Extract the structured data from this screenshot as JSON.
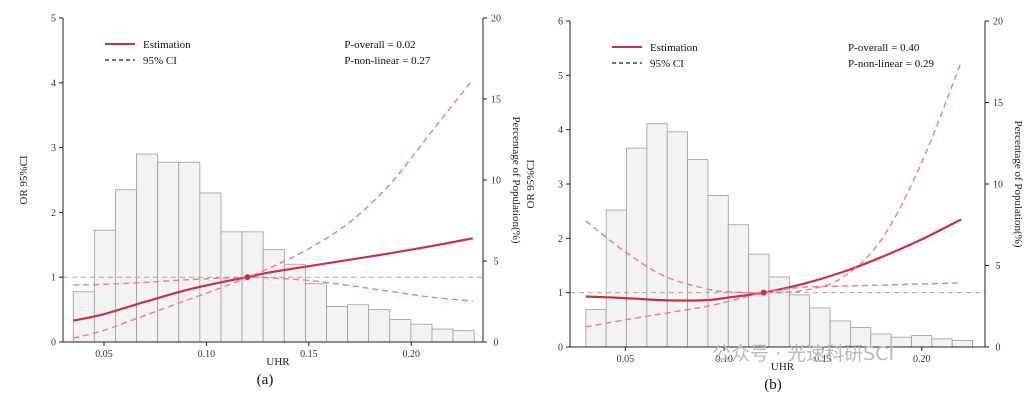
{
  "figure": {
    "watermark": "公众号 · 光速科研SCI"
  },
  "chart_data": [
    {
      "type": "line",
      "caption": "(a)",
      "xlabel": "UHR",
      "ylabel": "OR   95%CI",
      "y2label": "Percentage of Population(%)",
      "xlim": [
        0.03,
        0.235
      ],
      "ylim": [
        0,
        5
      ],
      "y2lim": [
        0,
        20
      ],
      "xticks": [
        "0.05",
        "0.10",
        "0.15",
        "0.20"
      ],
      "xtick_values": [
        0.05,
        0.1,
        0.15,
        0.2
      ],
      "yticks": [
        "0",
        "1",
        "2",
        "3",
        "4",
        "5"
      ],
      "y2ticks": [
        "0",
        "5",
        "10",
        "15",
        "20"
      ],
      "reference_line": 1,
      "reference_point": [
        0.12,
        1
      ],
      "legend": {
        "estimation": "Estimation",
        "ci": "95% CI"
      },
      "p_overall": "P-overall = 0.02",
      "p_nonlinear": "P-non-linear = 0.27",
      "histogram": {
        "bin_start": 0.035,
        "bin_width": 0.0103,
        "percent": [
          3.1,
          6.9,
          9.4,
          11.6,
          11.1,
          11.1,
          9.2,
          6.8,
          6.8,
          5.7,
          4.8,
          3.6,
          2.2,
          2.3,
          2.0,
          1.4,
          1.1,
          0.8,
          0.7
        ]
      },
      "series": [
        {
          "name": "Estimation",
          "x": [
            0.035,
            0.05,
            0.07,
            0.09,
            0.11,
            0.12,
            0.13,
            0.15,
            0.17,
            0.19,
            0.21,
            0.23
          ],
          "y": [
            0.33,
            0.43,
            0.62,
            0.8,
            0.94,
            1.0,
            1.07,
            1.17,
            1.27,
            1.37,
            1.48,
            1.6
          ]
        },
        {
          "name": "95% CI",
          "x": [
            0.035,
            0.05,
            0.07,
            0.09,
            0.11,
            0.12,
            0.13,
            0.15,
            0.17,
            0.19,
            0.21,
            0.23
          ],
          "y": [
            0.06,
            0.18,
            0.41,
            0.64,
            0.87,
            1.0,
            1.13,
            1.44,
            1.85,
            2.45,
            3.25,
            4.05
          ]
        },
        {
          "name": "95% CI",
          "x": [
            0.035,
            0.05,
            0.07,
            0.09,
            0.11,
            0.12,
            0.13,
            0.15,
            0.17,
            0.19,
            0.21,
            0.23
          ],
          "y": [
            0.88,
            0.89,
            0.92,
            0.96,
            0.99,
            1.0,
            0.99,
            0.95,
            0.87,
            0.78,
            0.69,
            0.63
          ]
        }
      ]
    },
    {
      "type": "line",
      "caption": "(b)",
      "xlabel": "UHR",
      "ylabel": "OR   95%CI",
      "y2label": "Percentage of Population(%)",
      "xlim": [
        0.022,
        0.232
      ],
      "ylim": [
        0,
        6
      ],
      "y2lim": [
        0,
        20
      ],
      "xticks": [
        "0.05",
        "0.10",
        "0.15",
        "0.20"
      ],
      "xtick_values": [
        0.05,
        0.1,
        0.15,
        0.2
      ],
      "yticks": [
        "0",
        "1",
        "2",
        "3",
        "4",
        "5",
        "6"
      ],
      "y2ticks": [
        "0",
        "5",
        "10",
        "15",
        "20"
      ],
      "reference_line": 1,
      "reference_point": [
        0.12,
        1
      ],
      "legend": {
        "estimation": "Estimation",
        "ci": "95% CI"
      },
      "p_overall": "P-overall = 0.40",
      "p_nonlinear": "P-non-linear = 0.29",
      "histogram": {
        "bin_start": 0.03,
        "bin_width": 0.0103,
        "percent": [
          2.3,
          8.4,
          12.2,
          13.7,
          13.2,
          11.5,
          9.3,
          7.5,
          5.7,
          4.3,
          3.2,
          2.4,
          1.6,
          1.2,
          0.8,
          0.6,
          0.7,
          0.5,
          0.4
        ]
      },
      "series": [
        {
          "name": "Estimation",
          "x": [
            0.03,
            0.05,
            0.07,
            0.09,
            0.1,
            0.12,
            0.14,
            0.16,
            0.18,
            0.2,
            0.22
          ],
          "y": [
            0.93,
            0.9,
            0.86,
            0.86,
            0.9,
            1.0,
            1.16,
            1.38,
            1.66,
            1.98,
            2.35
          ]
        },
        {
          "name": "95% CI",
          "x": [
            0.03,
            0.05,
            0.07,
            0.09,
            0.1,
            0.12,
            0.14,
            0.16,
            0.18,
            0.2,
            0.22
          ],
          "y": [
            2.32,
            1.75,
            1.3,
            1.08,
            1.02,
            1.0,
            1.04,
            1.28,
            2.0,
            3.4,
            5.25
          ]
        },
        {
          "name": "95% CI",
          "x": [
            0.03,
            0.05,
            0.07,
            0.09,
            0.1,
            0.12,
            0.14,
            0.16,
            0.18,
            0.2,
            0.22
          ],
          "y": [
            0.37,
            0.5,
            0.62,
            0.74,
            0.82,
            1.0,
            1.1,
            1.12,
            1.14,
            1.16,
            1.18
          ]
        }
      ]
    }
  ]
}
